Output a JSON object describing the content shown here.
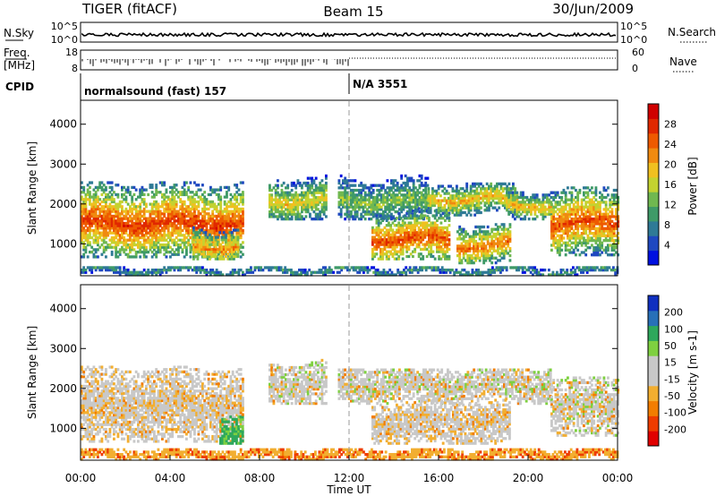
{
  "header": {
    "title_left": "TIGER (fitACF)",
    "title_center": "Beam 15",
    "title_right": "30/Jun/2009"
  },
  "panels": {
    "nsky": {
      "label": "N.Sky",
      "tick_top": "10^5",
      "tick_bottom": "10^0",
      "right_tick_top": "10^5",
      "right_tick_bottom": "10^0",
      "right_label": "N.Search"
    },
    "freq": {
      "label_line1": "Freq.",
      "label_line2": "[MHz]",
      "tick_top": "18",
      "tick_bottom": "8",
      "right_tick_top": "60",
      "right_tick_bottom": "0",
      "right_label": "Nave"
    },
    "cpid": {
      "label": "CPID",
      "segments": [
        {
          "text": "normalsound (fast) 157"
        },
        {
          "text": "N/A 3551"
        }
      ]
    }
  },
  "chart_data": [
    {
      "type": "heatmap",
      "name": "power",
      "ylabel": "Slant Range [km]",
      "yticks": [
        "4000",
        "3000",
        "2000",
        "1000"
      ],
      "ytick_values": [
        4000,
        3000,
        2000,
        1000
      ],
      "ylim": [
        200,
        4600
      ],
      "xlim_hours": [
        0,
        24
      ],
      "colorbar": {
        "label": "Power [dB]",
        "ticks": [
          "28",
          "24",
          "20",
          "16",
          "12",
          "8",
          "4"
        ],
        "range": [
          0,
          32
        ],
        "colors": [
          "#0010e0",
          "#1f48c0",
          "#2f7a96",
          "#3f9a68",
          "#70b850",
          "#c4d230",
          "#f0c020",
          "#f08a10",
          "#ee5a00",
          "#e02800",
          "#d00000"
        ]
      },
      "echo_regions": [
        {
          "t0": 0.0,
          "t1": 7.2,
          "r0": 650,
          "r1": 2550,
          "center_km": 1500,
          "peak_db": 27
        },
        {
          "t0": 5.0,
          "t1": 7.0,
          "r0": 600,
          "r1": 1500,
          "center_km": 900,
          "peak_db": 22
        },
        {
          "t0": 8.4,
          "t1": 11.0,
          "r0": 1600,
          "r1": 2700,
          "center_km": 2050,
          "peak_db": 18
        },
        {
          "t0": 11.5,
          "t1": 15.5,
          "r0": 1600,
          "r1": 2700,
          "center_km": 2050,
          "peak_db": 14
        },
        {
          "t0": 13.0,
          "t1": 16.5,
          "r0": 600,
          "r1": 1900,
          "center_km": 1100,
          "peak_db": 26
        },
        {
          "t0": 15.5,
          "t1": 19.5,
          "r0": 1700,
          "r1": 2500,
          "center_km": 2100,
          "peak_db": 20
        },
        {
          "t0": 16.8,
          "t1": 19.2,
          "r0": 500,
          "r1": 1500,
          "center_km": 950,
          "peak_db": 24
        },
        {
          "t0": 19.0,
          "t1": 21.0,
          "r0": 1600,
          "r1": 2300,
          "center_km": 1950,
          "peak_db": 20
        },
        {
          "t0": 21.0,
          "t1": 24.0,
          "r0": 700,
          "r1": 2400,
          "center_km": 1500,
          "peak_db": 26
        },
        {
          "t0": 0.0,
          "t1": 24.0,
          "r0": 200,
          "r1": 420,
          "center_km": 300,
          "peak_db": 10
        }
      ]
    },
    {
      "type": "heatmap",
      "name": "velocity",
      "ylabel": "Slant Range [km]",
      "yticks": [
        "4000",
        "3000",
        "2000",
        "1000"
      ],
      "ytick_values": [
        4000,
        3000,
        2000,
        1000
      ],
      "ylim": [
        200,
        4600
      ],
      "xlim_hours": [
        0,
        24
      ],
      "xticks": [
        "00:00",
        "04:00",
        "08:00",
        "12:00",
        "16:00",
        "20:00",
        "00:00"
      ],
      "xlabel": "Time UT",
      "colorbar": {
        "label": "Velocity [m s-1]",
        "ticks": [
          "200",
          "100",
          "50",
          "15",
          "-15",
          "-50",
          "-100",
          "-200"
        ],
        "range": [
          -250,
          250
        ],
        "colors": [
          "#e00000",
          "#ee3c00",
          "#f27d00",
          "#f2ae30",
          "#c8c8c8",
          "#c8c8c8",
          "#7ed040",
          "#2ea85c",
          "#2870b8",
          "#1030c0"
        ]
      },
      "echo_regions": [
        {
          "t0": 0.0,
          "t1": 7.2,
          "r0": 650,
          "r1": 2550,
          "center_km": 1500,
          "vel": -5
        },
        {
          "t0": 6.2,
          "t1": 7.2,
          "r0": 600,
          "r1": 1400,
          "center_km": 900,
          "vel": 60
        },
        {
          "t0": 8.4,
          "t1": 11.0,
          "r0": 1600,
          "r1": 2700,
          "center_km": 2050,
          "vel": 0
        },
        {
          "t0": 11.5,
          "t1": 21.0,
          "r0": 1600,
          "r1": 2500,
          "center_km": 2050,
          "vel": 0
        },
        {
          "t0": 13.0,
          "t1": 19.2,
          "r0": 600,
          "r1": 1700,
          "center_km": 1100,
          "vel": -5
        },
        {
          "t0": 21.0,
          "t1": 24.0,
          "r0": 800,
          "r1": 2300,
          "center_km": 1500,
          "vel": 0
        },
        {
          "t0": 0.0,
          "t1": 24.0,
          "r0": 200,
          "r1": 500,
          "center_km": 320,
          "vel": -40
        }
      ]
    }
  ]
}
